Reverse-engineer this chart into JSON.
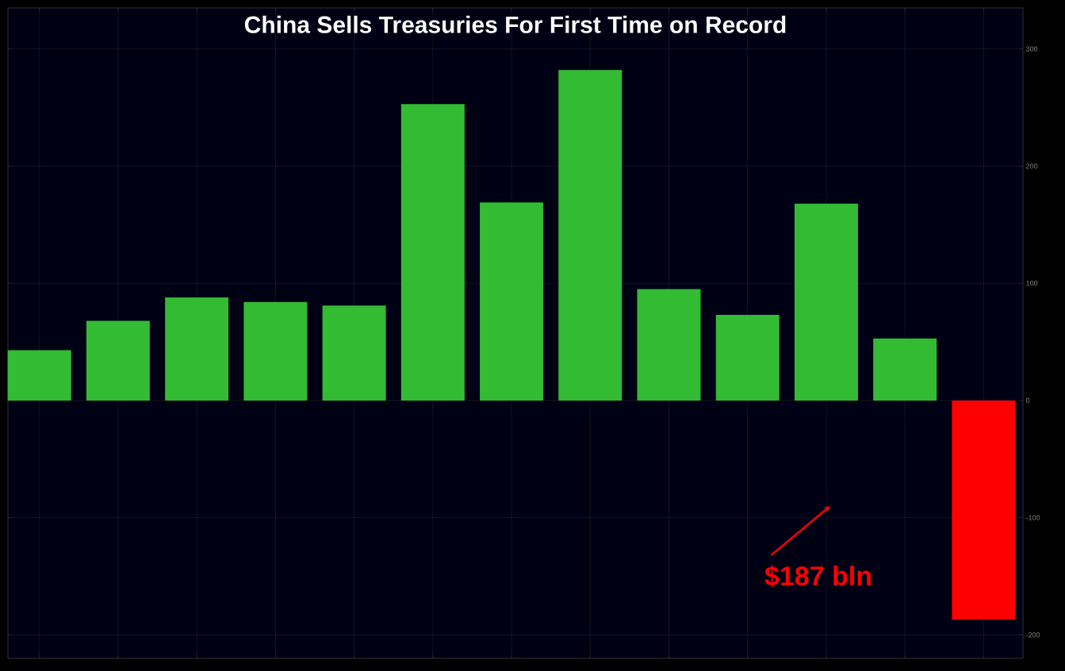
{
  "chart_data": {
    "type": "bar",
    "title": "China Sells Treasuries For First Time on Record",
    "categories": [
      null,
      null,
      null,
      null,
      null,
      null,
      null,
      null,
      null,
      null,
      null,
      null,
      null
    ],
    "values": [
      43,
      68,
      88,
      84,
      81,
      253,
      169,
      282,
      95,
      73,
      168,
      53,
      -187
    ],
    "colors": [
      "#33bb33",
      "#33bb33",
      "#33bb33",
      "#33bb33",
      "#33bb33",
      "#33bb33",
      "#33bb33",
      "#33bb33",
      "#33bb33",
      "#33bb33",
      "#33bb33",
      "#33bb33",
      "#ff0000"
    ],
    "ylim": [
      -220,
      335
    ],
    "yticks": [
      -200,
      -100,
      0,
      100,
      200,
      300
    ],
    "grid": true,
    "annotations": [
      "$187 bln"
    ]
  }
}
